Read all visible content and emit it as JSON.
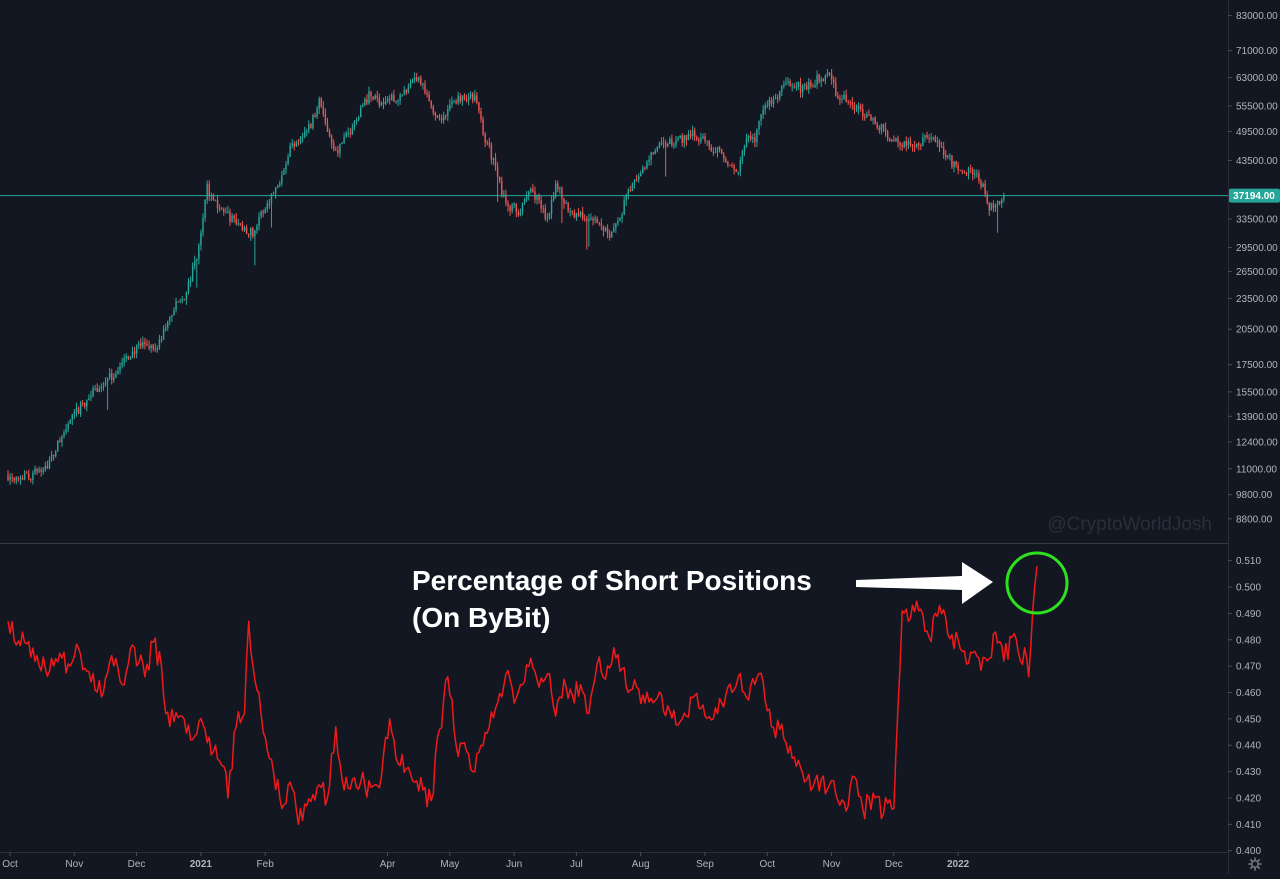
{
  "chart_data": [
    {
      "type": "candlestick",
      "scale": "log",
      "colors": {
        "up": "#26a69a",
        "down": "#ef5350",
        "background": "#131722",
        "price_line": "#26a69a"
      },
      "y_ticks": [
        "83000.00",
        "71000.00",
        "63000.00",
        "55500.00",
        "49500.00",
        "43500.00",
        "33500.00",
        "29500.00",
        "26500.00",
        "23500.00",
        "20500.00",
        "17500.00",
        "15500.00",
        "13900.00",
        "12400.00",
        "11000.00",
        "9800.00",
        "8800.00"
      ],
      "y_tick_values": [
        83000,
        71000,
        63000,
        55500,
        49500,
        43500,
        33500,
        29500,
        26500,
        23500,
        20500,
        17500,
        15500,
        13900,
        12400,
        11000,
        9800,
        8800
      ],
      "ylim": [
        7900,
        89000
      ],
      "last_price": 37194,
      "last_price_label": "37194.00",
      "x_ticks": [
        "Oct",
        "Nov",
        "Dec",
        "2021",
        "Feb",
        "Apr",
        "May",
        "Jun",
        "Jul",
        "Aug",
        "Sep",
        "Oct",
        "Nov",
        "Dec",
        "2022"
      ],
      "x_tick_days": [
        0,
        31,
        61,
        92,
        123,
        182,
        212,
        243,
        273,
        304,
        335,
        365,
        396,
        426,
        457
      ],
      "x_day_range": [
        -2,
        600
      ],
      "close_keypoints": [
        [
          0,
          10700
        ],
        [
          10,
          10600
        ],
        [
          20,
          11300
        ],
        [
          30,
          13600
        ],
        [
          40,
          15300
        ],
        [
          50,
          16600
        ],
        [
          60,
          18500
        ],
        [
          66,
          19200
        ],
        [
          72,
          18800
        ],
        [
          80,
          22500
        ],
        [
          86,
          24000
        ],
        [
          92,
          29300
        ],
        [
          96,
          38500
        ],
        [
          100,
          36000
        ],
        [
          106,
          34000
        ],
        [
          112,
          32500
        ],
        [
          118,
          31500
        ],
        [
          125,
          36000
        ],
        [
          130,
          39000
        ],
        [
          136,
          46000
        ],
        [
          140,
          48000
        ],
        [
          146,
          51000
        ],
        [
          150,
          57000
        ],
        [
          154,
          50000
        ],
        [
          158,
          45000
        ],
        [
          162,
          47500
        ],
        [
          166,
          50500
        ],
        [
          170,
          55000
        ],
        [
          174,
          58000
        ],
        [
          180,
          56500
        ],
        [
          186,
          57500
        ],
        [
          192,
          58500
        ],
        [
          197,
          63000
        ],
        [
          200,
          60000
        ],
        [
          205,
          54000
        ],
        [
          210,
          52500
        ],
        [
          215,
          57000
        ],
        [
          220,
          58000
        ],
        [
          225,
          57500
        ],
        [
          230,
          48000
        ],
        [
          234,
          43500
        ],
        [
          238,
          37500
        ],
        [
          242,
          35500
        ],
        [
          247,
          34500
        ],
        [
          252,
          38500
        ],
        [
          256,
          36000
        ],
        [
          260,
          33500
        ],
        [
          264,
          39500
        ],
        [
          268,
          36000
        ],
        [
          272,
          34500
        ],
        [
          276,
          34000
        ],
        [
          280,
          33500
        ],
        [
          284,
          33000
        ],
        [
          290,
          31500
        ],
        [
          295,
          33500
        ],
        [
          298,
          37000
        ],
        [
          302,
          39500
        ],
        [
          306,
          41500
        ],
        [
          310,
          44500
        ],
        [
          315,
          46500
        ],
        [
          320,
          47000
        ],
        [
          325,
          48000
        ],
        [
          330,
          49500
        ],
        [
          335,
          47500
        ],
        [
          340,
          46000
        ],
        [
          344,
          45500
        ],
        [
          348,
          42000
        ],
        [
          352,
          41500
        ],
        [
          356,
          47500
        ],
        [
          360,
          48000
        ],
        [
          365,
          56000
        ],
        [
          370,
          57000
        ],
        [
          375,
          61500
        ],
        [
          380,
          60500
        ],
        [
          385,
          60000
        ],
        [
          390,
          62500
        ],
        [
          395,
          64000
        ],
        [
          400,
          58000
        ],
        [
          405,
          56500
        ],
        [
          410,
          54500
        ],
        [
          415,
          53500
        ],
        [
          420,
          50500
        ],
        [
          425,
          48000
        ],
        [
          430,
          47000
        ],
        [
          435,
          46500
        ],
        [
          440,
          47500
        ],
        [
          445,
          48000
        ],
        [
          450,
          46000
        ],
        [
          455,
          43000
        ],
        [
          460,
          42000
        ],
        [
          465,
          41500
        ],
        [
          470,
          38500
        ],
        [
          473,
          35500
        ],
        [
          477,
          36500
        ],
        [
          480,
          37194
        ]
      ]
    },
    {
      "type": "line",
      "color": "#f01a1a",
      "y_ticks": [
        "0.510",
        "0.500",
        "0.490",
        "0.480",
        "0.470",
        "0.460",
        "0.450",
        "0.440",
        "0.430",
        "0.420",
        "0.410",
        "0.400"
      ],
      "y_tick_values": [
        0.51,
        0.5,
        0.49,
        0.48,
        0.47,
        0.46,
        0.45,
        0.44,
        0.43,
        0.42,
        0.41,
        0.4
      ],
      "ylim": [
        0.3995,
        0.5167
      ],
      "series": [
        {
          "name": "Percentage of Short Positions (On ByBit)",
          "keypoints": [
            [
              0,
              0.487
            ],
            [
              4,
              0.478
            ],
            [
              8,
              0.479
            ],
            [
              14,
              0.474
            ],
            [
              20,
              0.468
            ],
            [
              26,
              0.473
            ],
            [
              30,
              0.47
            ],
            [
              34,
              0.477
            ],
            [
              40,
              0.464
            ],
            [
              46,
              0.46
            ],
            [
              50,
              0.474
            ],
            [
              55,
              0.463
            ],
            [
              60,
              0.478
            ],
            [
              66,
              0.466
            ],
            [
              70,
              0.479
            ],
            [
              74,
              0.47
            ],
            [
              76,
              0.452
            ],
            [
              80,
              0.449
            ],
            [
              84,
              0.451
            ],
            [
              88,
              0.442
            ],
            [
              92,
              0.449
            ],
            [
              96,
              0.441
            ],
            [
              100,
              0.44
            ],
            [
              104,
              0.432
            ],
            [
              106,
              0.42
            ],
            [
              110,
              0.447
            ],
            [
              114,
              0.452
            ],
            [
              116,
              0.487
            ],
            [
              120,
              0.461
            ],
            [
              124,
              0.443
            ],
            [
              128,
              0.43
            ],
            [
              132,
              0.416
            ],
            [
              136,
              0.426
            ],
            [
              140,
              0.41
            ],
            [
              144,
              0.417
            ],
            [
              150,
              0.425
            ],
            [
              154,
              0.42
            ],
            [
              158,
              0.447
            ],
            [
              162,
              0.423
            ],
            [
              166,
              0.427
            ],
            [
              170,
              0.426
            ],
            [
              175,
              0.424
            ],
            [
              180,
              0.428
            ],
            [
              184,
              0.45
            ],
            [
              188,
              0.433
            ],
            [
              192,
              0.431
            ],
            [
              196,
              0.426
            ],
            [
              200,
              0.423
            ],
            [
              204,
              0.419
            ],
            [
              208,
              0.446
            ],
            [
              212,
              0.466
            ],
            [
              216,
              0.44
            ],
            [
              220,
              0.441
            ],
            [
              224,
              0.43
            ],
            [
              228,
              0.44
            ],
            [
              232,
              0.447
            ],
            [
              236,
              0.456
            ],
            [
              240,
              0.467
            ],
            [
              244,
              0.456
            ],
            [
              248,
              0.463
            ],
            [
              252,
              0.473
            ],
            [
              256,
              0.462
            ],
            [
              260,
              0.467
            ],
            [
              264,
              0.451
            ],
            [
              268,
              0.465
            ],
            [
              272,
              0.459
            ],
            [
              276,
              0.463
            ],
            [
              280,
              0.452
            ],
            [
              284,
              0.471
            ],
            [
              288,
              0.465
            ],
            [
              292,
              0.477
            ],
            [
              296,
              0.469
            ],
            [
              300,
              0.461
            ],
            [
              306,
              0.459
            ],
            [
              312,
              0.457
            ],
            [
              318,
              0.455
            ],
            [
              324,
              0.449
            ],
            [
              330,
              0.458
            ],
            [
              336,
              0.451
            ],
            [
              342,
              0.452
            ],
            [
              346,
              0.459
            ],
            [
              352,
              0.466
            ],
            [
              356,
              0.458
            ],
            [
              360,
              0.463
            ],
            [
              364,
              0.464
            ],
            [
              368,
              0.447
            ],
            [
              372,
              0.446
            ],
            [
              376,
              0.437
            ],
            [
              380,
              0.432
            ],
            [
              384,
              0.426
            ],
            [
              388,
              0.424
            ],
            [
              392,
              0.427
            ],
            [
              396,
              0.425
            ],
            [
              400,
              0.419
            ],
            [
              404,
              0.415
            ],
            [
              408,
              0.428
            ],
            [
              412,
              0.416
            ],
            [
              418,
              0.42
            ],
            [
              422,
              0.414
            ],
            [
              424,
              0.418
            ],
            [
              427,
              0.416
            ],
            [
              431,
              0.491
            ],
            [
              435,
              0.488
            ],
            [
              439,
              0.491
            ],
            [
              444,
              0.481
            ],
            [
              449,
              0.493
            ],
            [
              453,
              0.482
            ],
            [
              458,
              0.48
            ],
            [
              463,
              0.471
            ],
            [
              468,
              0.473
            ],
            [
              472,
              0.472
            ],
            [
              476,
              0.483
            ],
            [
              480,
              0.472
            ],
            [
              484,
              0.481
            ],
            [
              488,
              0.472
            ],
            [
              490,
              0.477
            ],
            [
              492,
              0.466
            ],
            [
              494,
              0.492
            ],
            [
              496,
              0.508
            ]
          ]
        }
      ]
    }
  ],
  "annotations": {
    "label_line1": "Percentage of Short Positions",
    "label_line2": "(On ByBit)",
    "watermark": "@CryptoWorldJosh",
    "highlight_color": "#2ee01e",
    "arrow_color": "#ffffff"
  },
  "icons": {
    "settings": "gear-icon"
  }
}
